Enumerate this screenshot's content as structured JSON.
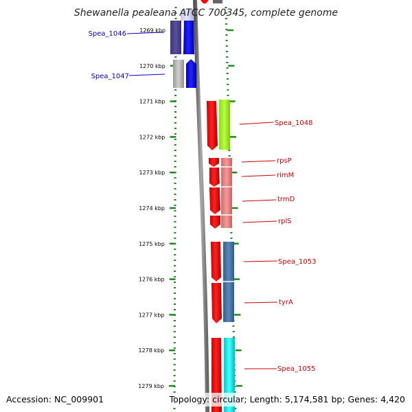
{
  "title": "Shewanella pealeana ATCC 700345, complete genome",
  "accession": "Accession: NC_009901",
  "summary": "Topology: circular; Length: 5,174,581 bp; Genes: 4,420",
  "ruler_ticks": [
    "1269 kbp",
    "1270 kbp",
    "1271 kbp",
    "1272 kbp",
    "1273 kbp",
    "1274 kbp",
    "1275 kbp",
    "1276 kbp",
    "1277 kbp",
    "1278 kbp",
    "1279 kbp"
  ],
  "gene_labels": [
    {
      "text": "Spea_1046",
      "color": "#0000cc"
    },
    {
      "text": "Spea_1047",
      "color": "#0000cc"
    },
    {
      "text": "Spea_1048",
      "color": "#cc0000"
    },
    {
      "text": "rpsP",
      "color": "#cc0000"
    },
    {
      "text": "rimM",
      "color": "#cc0000"
    },
    {
      "text": "trmD",
      "color": "#cc0000"
    },
    {
      "text": "rplS",
      "color": "#cc0000"
    },
    {
      "text": "Spea_1053",
      "color": "#cc0000"
    },
    {
      "text": "tyrA",
      "color": "#cc0000"
    },
    {
      "text": "Spea_1055",
      "color": "#cc0000"
    }
  ],
  "colors": {
    "tick": "#1a8a1a",
    "backbone": "#888888",
    "forward_gene": "#0000ff",
    "reverse_gene": "#ff0000",
    "cog_purple": "#5a4f9a",
    "cog_gray": "#b3b3b3",
    "cog_lime": "#aaff33",
    "cog_pink": "#e88080",
    "cog_steel": "#4a77aa",
    "cog_cyan": "#00eeee"
  }
}
